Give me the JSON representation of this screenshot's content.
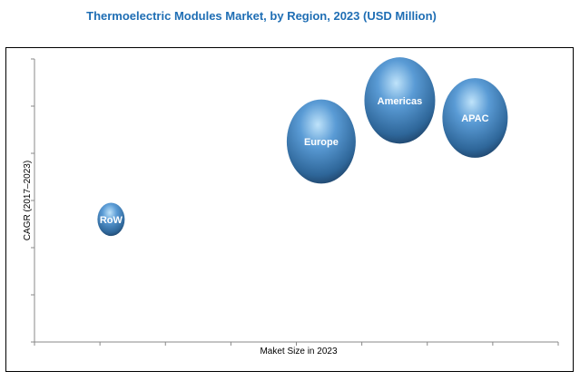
{
  "chart_data": {
    "type": "bubble",
    "title": "Thermoelectric Modules Market, by Region, 2023  (USD Million)",
    "xlabel": "Maket Size in 2023",
    "ylabel": "CAGR (2017–2023)",
    "xlim": [
      0,
      8
    ],
    "ylim": [
      0,
      6
    ],
    "grid": false,
    "bubble_color": "#3C7FBF",
    "points": [
      {
        "label": "RoW",
        "x": 1.17,
        "y": 2.6,
        "size": 15
      },
      {
        "label": "Europe",
        "x": 4.38,
        "y": 4.25,
        "size": 38
      },
      {
        "label": "Americas",
        "x": 5.58,
        "y": 5.12,
        "size": 39
      },
      {
        "label": "APAC",
        "x": 6.73,
        "y": 4.75,
        "size": 36
      }
    ]
  }
}
